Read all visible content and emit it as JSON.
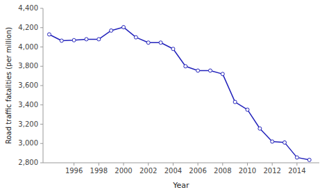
{
  "chart_data": {
    "type": "line",
    "xlabel": "Year",
    "ylabel": "Road traffic fatalities (per million)",
    "x": [
      1994,
      1995,
      1996,
      1997,
      1998,
      1999,
      2000,
      2001,
      2002,
      2003,
      2004,
      2005,
      2006,
      2007,
      2008,
      2009,
      2010,
      2011,
      2012,
      2013,
      2014,
      2015
    ],
    "values": [
      4130,
      4065,
      4070,
      4080,
      4080,
      4170,
      4205,
      4100,
      4045,
      4045,
      3980,
      3800,
      3755,
      3755,
      3720,
      3430,
      3350,
      3155,
      3020,
      3010,
      2855,
      2830
    ],
    "color": "#2222bb",
    "marker": "circle",
    "xlim": [
      1993.5,
      2015.8
    ],
    "ylim": [
      2800,
      4400
    ],
    "xticks": [
      1996,
      1998,
      2000,
      2002,
      2004,
      2006,
      2008,
      2010,
      2012,
      2014
    ],
    "yticks": [
      {
        "value": 2800,
        "label": "2,800"
      },
      {
        "value": 3000,
        "label": "3,000"
      },
      {
        "value": 3200,
        "label": "3,200"
      },
      {
        "value": 3400,
        "label": "3,400"
      },
      {
        "value": 3600,
        "label": "3,600"
      },
      {
        "value": 3800,
        "label": "3,800"
      },
      {
        "value": 4000,
        "label": "4,000"
      },
      {
        "value": 4200,
        "label": "4,200"
      },
      {
        "value": 4400,
        "label": "4,400"
      }
    ],
    "grid": false
  }
}
